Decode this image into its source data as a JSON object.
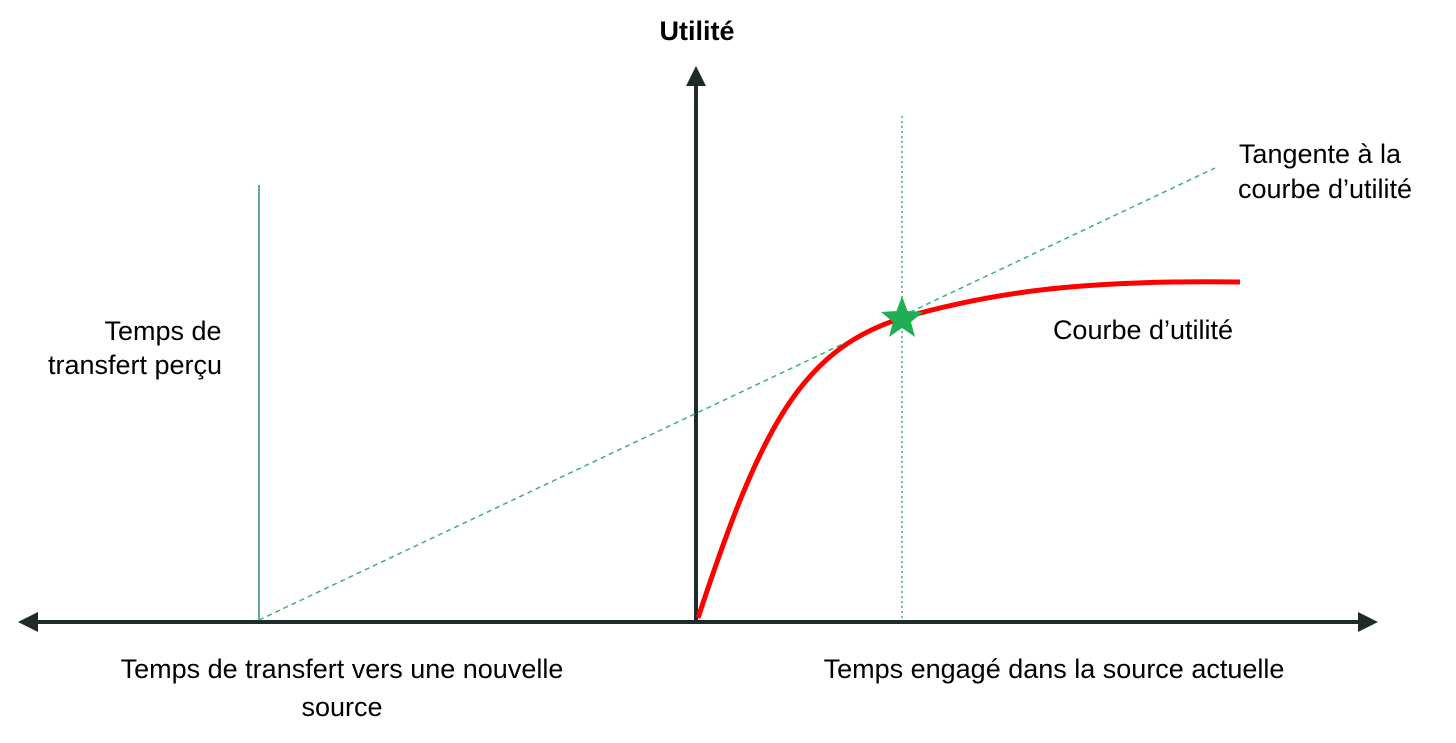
{
  "diagram": {
    "y_axis_label": "Utilité",
    "x_axis_left_label": [
      "Temps de transfert vers une nouvelle",
      "source"
    ],
    "x_axis_right_label": "Temps engagé dans la source actuelle",
    "perceived_transfer_label": [
      "Temps de",
      "transfert perçu"
    ],
    "tangent_label": [
      "Tangente à la",
      "courbe d’utilité"
    ],
    "curve_label": "Courbe d’utilité"
  },
  "colors": {
    "axis": "#1f2b2b",
    "curve": "#ff0000",
    "tangent": "#3cb371",
    "transfer_line": "#5fae8a",
    "marker": "#1fae54"
  },
  "icons": {
    "optimum_marker": "star-icon"
  }
}
